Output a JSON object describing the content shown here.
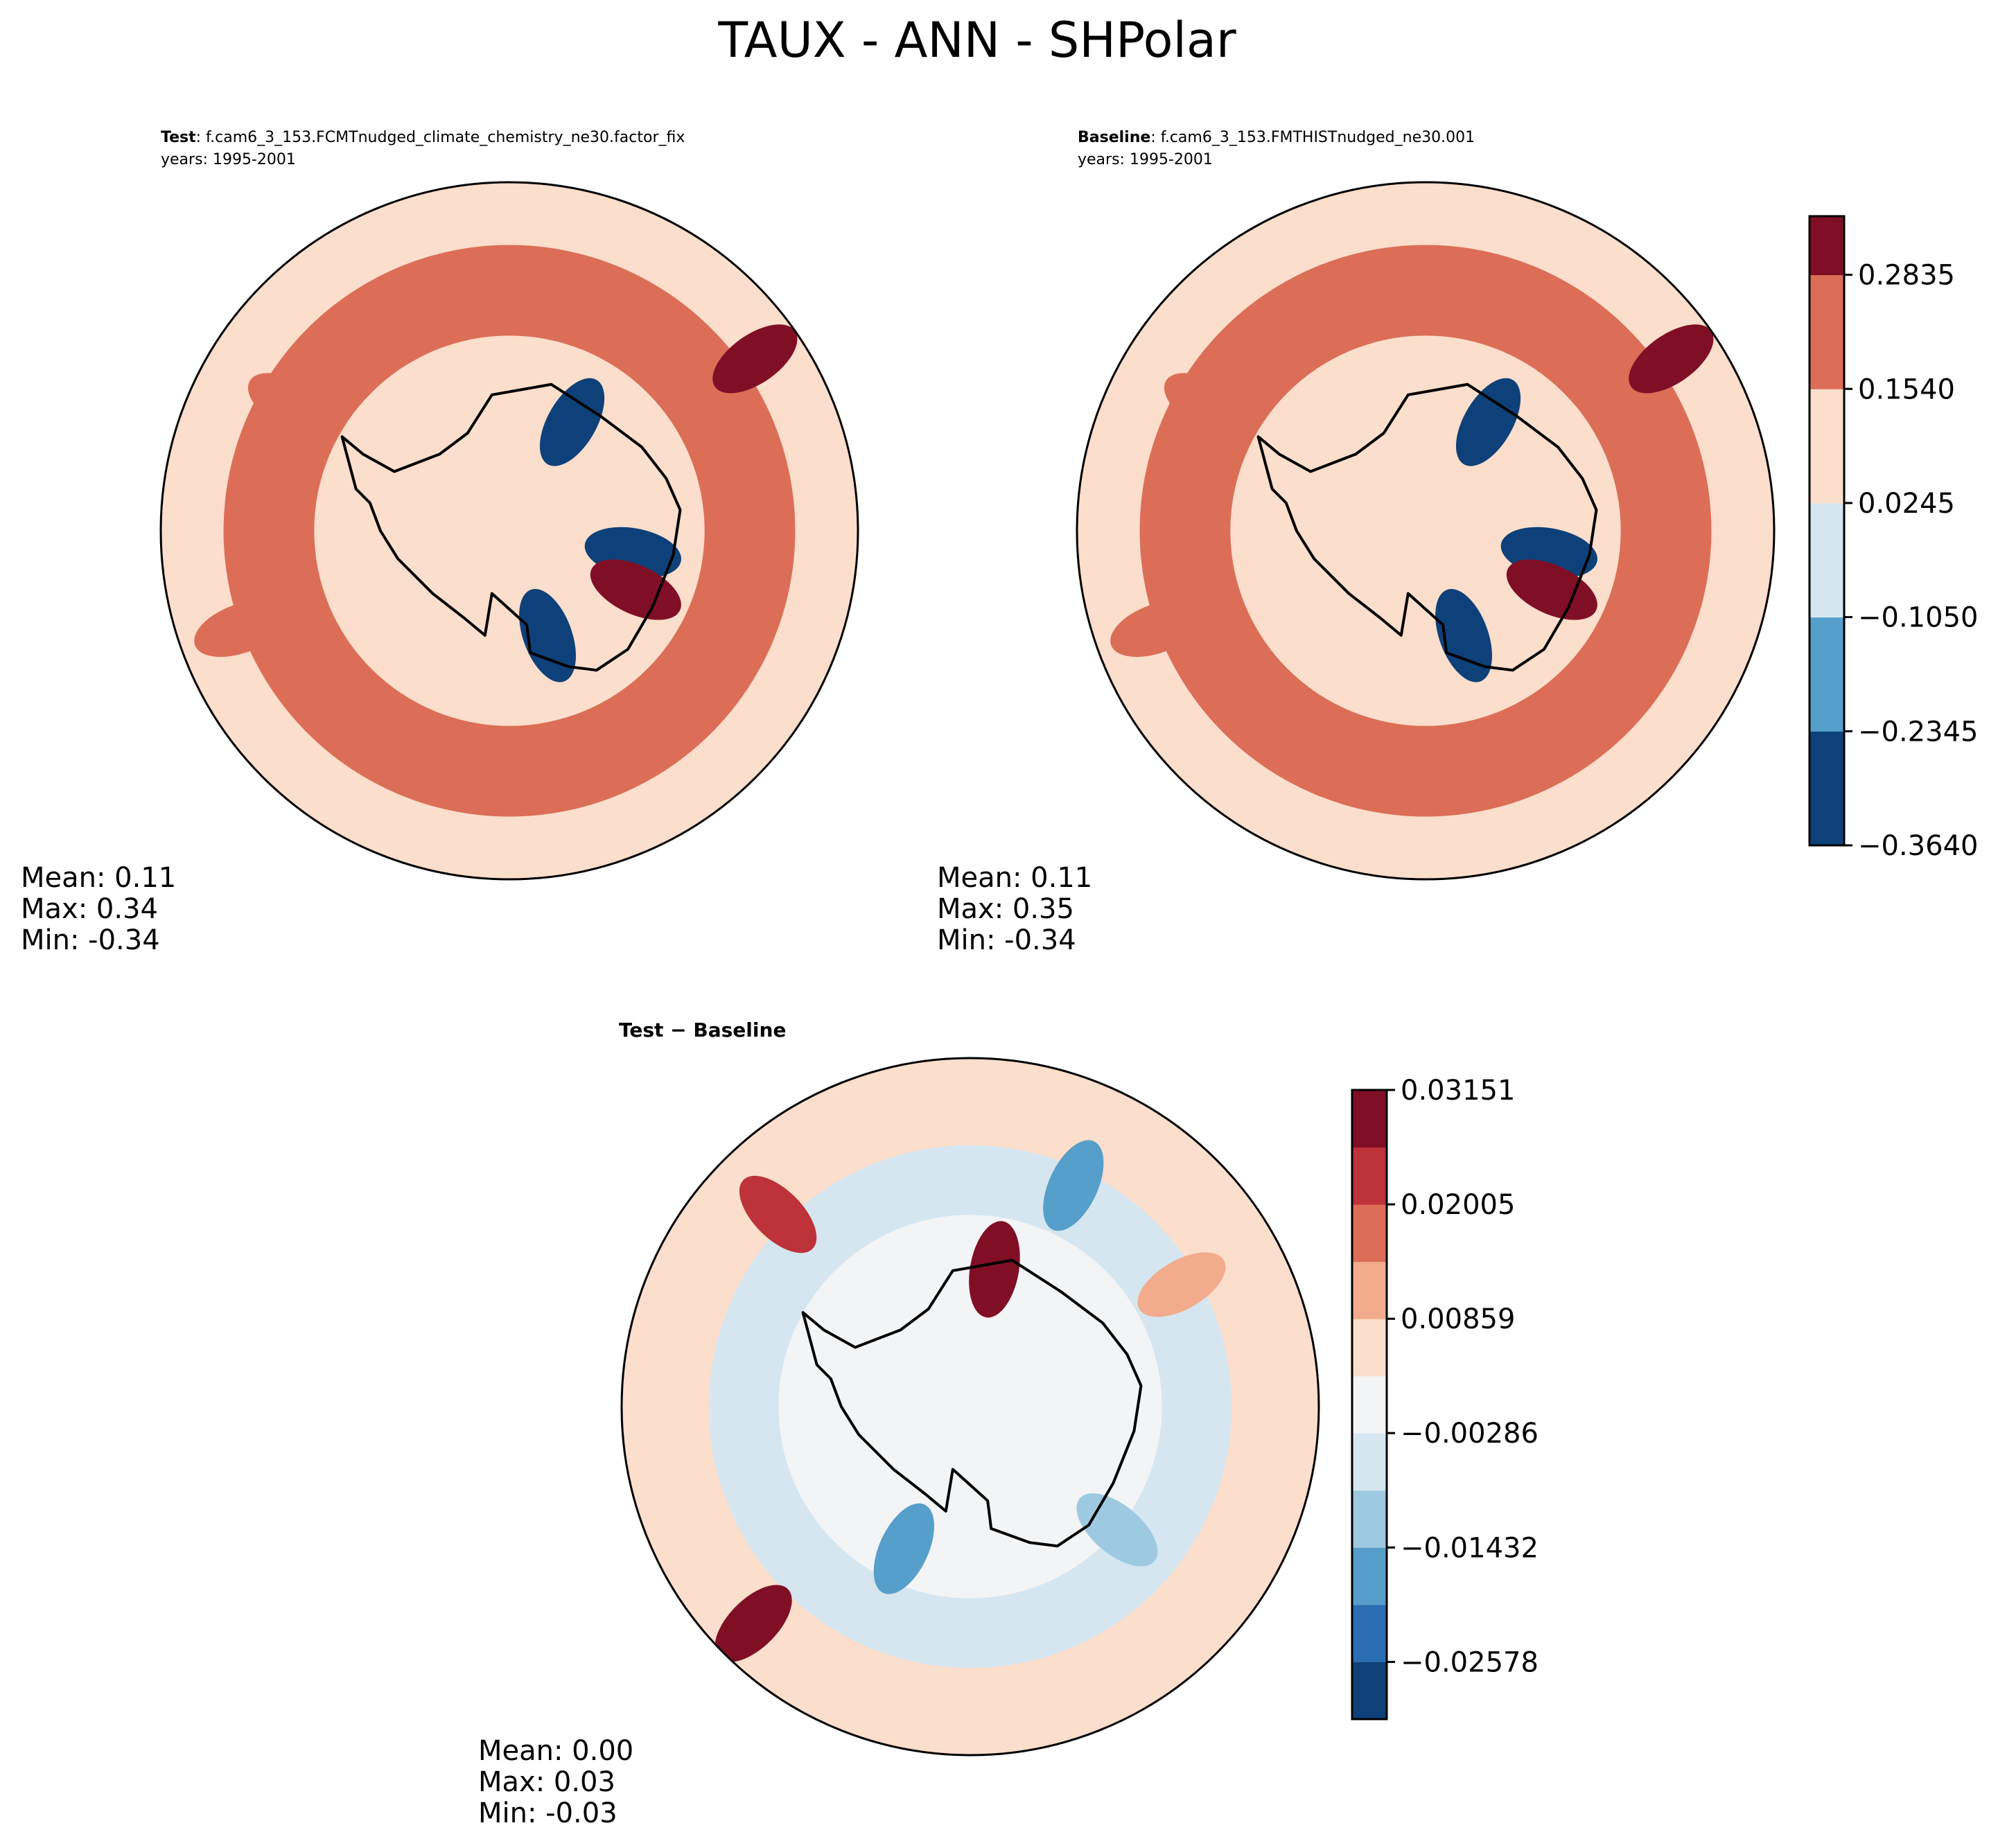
{
  "title": "TAUX - ANN - SHPolar",
  "colormap_rdbu": [
    "#0e4179",
    "#2b6eb2",
    "#579fcb",
    "#9dcae1",
    "#d5e6f1",
    "#f3f4f5",
    "#fbdecb",
    "#f2ab8c",
    "#dc6e57",
    "#be323a",
    "#800f26"
  ],
  "chart_data": [
    {
      "type": "heatmap",
      "projection": "south-polar-stereographic",
      "label_bold": "Test",
      "label_rest": ": f.cam6_3_153.FCMTnudged_climate_chemistry_ne30.factor_fix",
      "years": "years: 1995-2001",
      "stats": {
        "mean": "Mean:  0.11",
        "max": "Max:  0.34",
        "min": "Min: -0.34"
      },
      "levels": [
        -0.364,
        -0.2345,
        -0.105,
        0.0245,
        0.154,
        0.2835,
        0.35
      ],
      "ring_fractions": [
        0.31,
        0.44,
        0.56,
        0.68,
        0.82,
        1.0
      ],
      "ring_levels": [
        0.0245,
        0.06,
        0.11,
        0.154,
        0.2,
        0.09
      ],
      "features": [
        {
          "kind": "max",
          "lon_deg": 55,
          "colat_frac": 0.86,
          "level": 0.31
        },
        {
          "kind": "max",
          "lon_deg": 300,
          "colat_frac": 0.72,
          "level": 0.25
        },
        {
          "kind": "max",
          "lon_deg": 250,
          "colat_frac": 0.82,
          "level": 0.25
        },
        {
          "kind": "min",
          "lon_deg": 160,
          "colat_frac": 0.32,
          "level": -0.3
        },
        {
          "kind": "min",
          "lon_deg": 30,
          "colat_frac": 0.36,
          "level": -0.28
        },
        {
          "kind": "min",
          "lon_deg": 100,
          "colat_frac": 0.36,
          "level": -0.25
        },
        {
          "kind": "max",
          "lon_deg": 115,
          "colat_frac": 0.4,
          "level": 0.3
        }
      ]
    },
    {
      "type": "heatmap",
      "projection": "south-polar-stereographic",
      "label_bold": "Baseline",
      "label_rest": ": f.cam6_3_153.FMTHISTnudged_ne30.001",
      "years": "years: 1995-2001",
      "stats": {
        "mean": "Mean:  0.11",
        "max": "Max:  0.35",
        "min": "Min: -0.34"
      },
      "levels": [
        -0.364,
        -0.2345,
        -0.105,
        0.0245,
        0.154,
        0.2835,
        0.35
      ],
      "ring_fractions": [
        0.31,
        0.44,
        0.56,
        0.68,
        0.82,
        1.0
      ],
      "ring_levels": [
        0.0245,
        0.06,
        0.11,
        0.154,
        0.2,
        0.09
      ],
      "features": [
        {
          "kind": "max",
          "lon_deg": 55,
          "colat_frac": 0.86,
          "level": 0.31
        },
        {
          "kind": "max",
          "lon_deg": 300,
          "colat_frac": 0.72,
          "level": 0.25
        },
        {
          "kind": "max",
          "lon_deg": 250,
          "colat_frac": 0.82,
          "level": 0.25
        },
        {
          "kind": "min",
          "lon_deg": 160,
          "colat_frac": 0.32,
          "level": -0.3
        },
        {
          "kind": "min",
          "lon_deg": 30,
          "colat_frac": 0.36,
          "level": -0.28
        },
        {
          "kind": "min",
          "lon_deg": 100,
          "colat_frac": 0.36,
          "level": -0.25
        },
        {
          "kind": "max",
          "lon_deg": 115,
          "colat_frac": 0.4,
          "level": 0.3
        }
      ],
      "colorbar": {
        "ticks": [
          0.2835,
          0.154,
          0.0245,
          -0.105,
          -0.2345,
          -0.364
        ],
        "tick_labels": [
          "0.2835",
          "0.1540",
          "0.0245",
          "−0.1050",
          "−0.2345",
          "−0.3640"
        ],
        "range": [
          -0.364,
          0.35
        ]
      }
    },
    {
      "type": "heatmap",
      "projection": "south-polar-stereographic",
      "label_bold": "Test − Baseline",
      "stats": {
        "mean": "Mean:  0.00",
        "max": "Max:  0.03",
        "min": "Min: -0.03"
      },
      "levels": [
        -0.03151,
        -0.02578,
        -0.02005,
        -0.01432,
        -0.00859,
        -0.00286,
        0.00286,
        0.00859,
        0.01432,
        0.02005,
        0.02578,
        0.03151
      ],
      "ring_fractions": [
        0.55,
        0.75,
        0.9,
        1.0
      ],
      "ring_levels": [
        0.0,
        -0.004,
        0.004,
        0.006
      ],
      "features": [
        {
          "kind": "max",
          "lon_deg": 225,
          "colat_frac": 0.88,
          "level": 0.026
        },
        {
          "kind": "max",
          "lon_deg": 315,
          "colat_frac": 0.78,
          "level": 0.021
        },
        {
          "kind": "max",
          "lon_deg": 10,
          "colat_frac": 0.4,
          "level": 0.028
        },
        {
          "kind": "min",
          "lon_deg": 205,
          "colat_frac": 0.45,
          "level": -0.018
        },
        {
          "kind": "min",
          "lon_deg": 25,
          "colat_frac": 0.7,
          "level": -0.016
        },
        {
          "kind": "max",
          "lon_deg": 60,
          "colat_frac": 0.7,
          "level": 0.012
        },
        {
          "kind": "min",
          "lon_deg": 130,
          "colat_frac": 0.55,
          "level": -0.012
        }
      ],
      "colorbar": {
        "ticks": [
          0.03151,
          0.02005,
          0.00859,
          -0.00286,
          -0.01432,
          -0.02578
        ],
        "tick_labels": [
          "0.03151",
          "0.02005",
          "0.00859",
          "−0.00286",
          "−0.01432",
          "−0.02578"
        ],
        "range": [
          -0.03151,
          0.03151
        ]
      }
    }
  ]
}
